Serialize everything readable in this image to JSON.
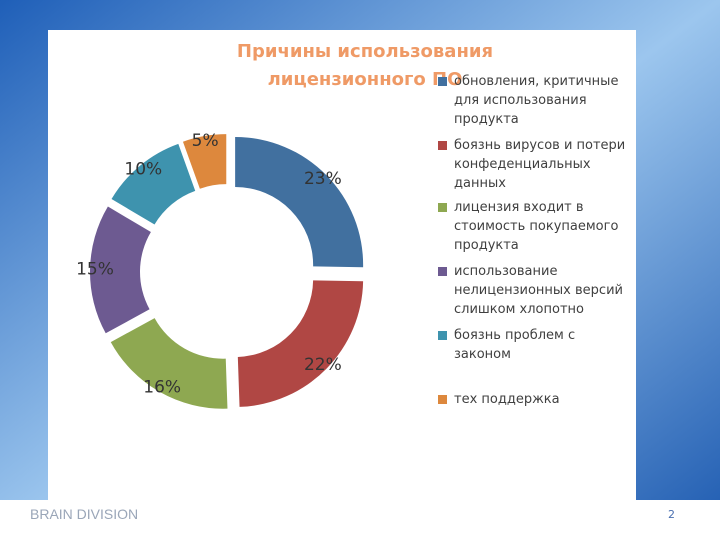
{
  "chart_data": {
    "type": "donut",
    "title": "Причины использования лицензионного ПО",
    "categories": [
      "обновления, критичные для использования продукта",
      "боязнь вирусов и потери конфеденциальных данных",
      "лицензия входит в стоимость покупаемого продукта",
      "использование нелицензионных версий слишком хлопотно",
      "боязнь проблем с законом",
      "тех поддержка"
    ],
    "values": [
      23,
      22,
      16,
      15,
      10,
      5
    ],
    "value_labels": [
      "23%",
      "22%",
      "16%",
      "15%",
      "10%",
      "5%"
    ],
    "colors": [
      "#41709f",
      "#b04744",
      "#8ea851",
      "#6d5a91",
      "#3e93ae",
      "#dd883d"
    ],
    "legend": "right"
  },
  "footer": {
    "brand": "BRAIN DIVISION",
    "page": 2
  }
}
